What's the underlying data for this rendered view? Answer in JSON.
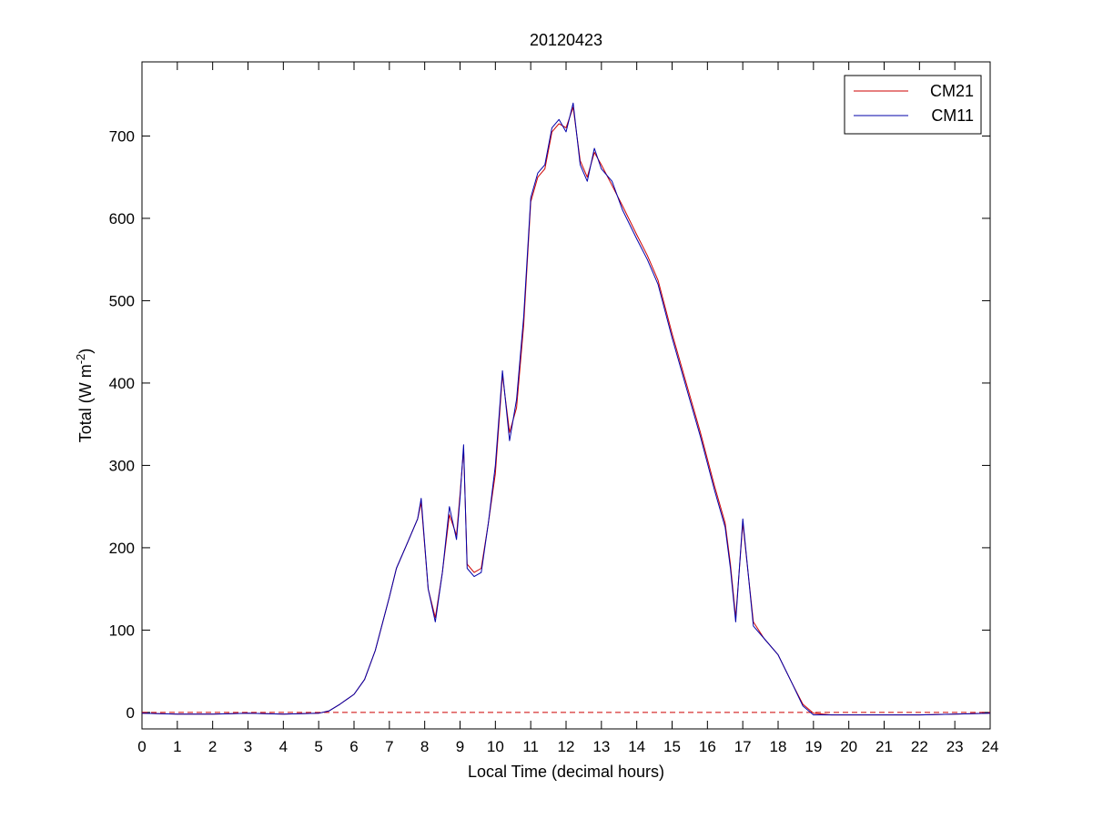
{
  "chart_data": {
    "type": "line",
    "title": "20120423",
    "xlabel": "Local Time (decimal hours)",
    "ylabel": {
      "main": "Total (W m",
      "superscript": "-2",
      "close": ")"
    },
    "xlim": [
      0,
      24
    ],
    "ylim": [
      -20,
      790
    ],
    "xticks": [
      0,
      1,
      2,
      3,
      4,
      5,
      6,
      7,
      8,
      9,
      10,
      11,
      12,
      13,
      14,
      15,
      16,
      17,
      18,
      19,
      20,
      21,
      22,
      23,
      24
    ],
    "yticks": [
      0,
      100,
      200,
      300,
      400,
      500,
      600,
      700
    ],
    "grid": false,
    "legend_position": "top-right",
    "reference_line": {
      "y": 0,
      "style": "dashed",
      "color": "#cc0000"
    },
    "series": [
      {
        "name": "CM21",
        "color": "#cc0000",
        "x": [
          0,
          1,
          2,
          3,
          4,
          5,
          5.3,
          5.6,
          6.0,
          6.3,
          6.6,
          7.0,
          7.2,
          7.5,
          7.8,
          7.9,
          8.1,
          8.3,
          8.5,
          8.7,
          8.9,
          9.0,
          9.1,
          9.2,
          9.4,
          9.6,
          9.8,
          10.0,
          10.2,
          10.4,
          10.6,
          10.8,
          11.0,
          11.2,
          11.4,
          11.6,
          11.8,
          12.0,
          12.2,
          12.4,
          12.6,
          12.8,
          13.0,
          13.3,
          13.6,
          14.0,
          14.3,
          14.6,
          15.0,
          15.4,
          15.8,
          16.2,
          16.5,
          16.65,
          16.8,
          17.0,
          17.3,
          17.6,
          18.0,
          18.4,
          18.7,
          19.0,
          19.5,
          20,
          21,
          22,
          23,
          24
        ],
        "values": [
          -1,
          -2,
          -2,
          -1,
          -2,
          -1,
          2,
          10,
          22,
          40,
          75,
          140,
          175,
          205,
          235,
          255,
          150,
          115,
          170,
          240,
          215,
          265,
          320,
          180,
          170,
          175,
          230,
          290,
          410,
          340,
          370,
          470,
          620,
          650,
          660,
          705,
          715,
          710,
          735,
          670,
          650,
          680,
          665,
          640,
          615,
          580,
          555,
          525,
          460,
          400,
          340,
          275,
          230,
          180,
          115,
          230,
          110,
          90,
          70,
          35,
          10,
          -1,
          -3,
          -3,
          -3,
          -3,
          -2,
          -1
        ]
      },
      {
        "name": "CM11",
        "color": "#0000aa",
        "x": [
          0,
          1,
          2,
          3,
          4,
          5,
          5.3,
          5.6,
          6.0,
          6.3,
          6.6,
          7.0,
          7.2,
          7.5,
          7.8,
          7.9,
          8.1,
          8.3,
          8.5,
          8.7,
          8.9,
          9.0,
          9.1,
          9.2,
          9.4,
          9.6,
          9.8,
          10.0,
          10.2,
          10.4,
          10.6,
          10.8,
          11.0,
          11.2,
          11.4,
          11.6,
          11.8,
          12.0,
          12.2,
          12.4,
          12.6,
          12.8,
          13.0,
          13.3,
          13.6,
          14.0,
          14.3,
          14.6,
          15.0,
          15.4,
          15.8,
          16.2,
          16.5,
          16.65,
          16.8,
          17.0,
          17.3,
          17.6,
          18.0,
          18.4,
          18.7,
          19.0,
          19.5,
          20,
          21,
          22,
          23,
          24
        ],
        "values": [
          -1,
          -2,
          -2,
          -1,
          -2,
          -1,
          2,
          10,
          22,
          40,
          75,
          140,
          175,
          205,
          235,
          260,
          150,
          110,
          170,
          250,
          210,
          260,
          325,
          175,
          165,
          170,
          230,
          300,
          415,
          330,
          380,
          480,
          625,
          655,
          665,
          710,
          720,
          705,
          740,
          665,
          645,
          685,
          660,
          645,
          610,
          575,
          550,
          520,
          455,
          395,
          335,
          270,
          225,
          175,
          110,
          235,
          105,
          90,
          70,
          35,
          8,
          -3,
          -3,
          -3,
          -3,
          -3,
          -2,
          -1
        ]
      }
    ]
  }
}
